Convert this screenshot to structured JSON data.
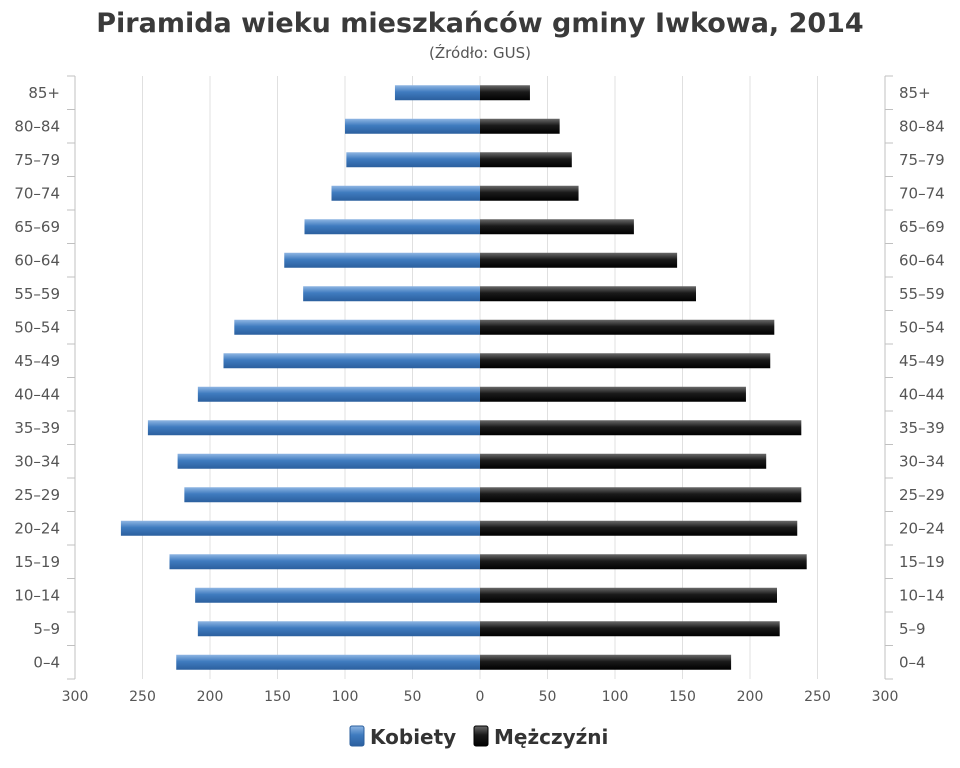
{
  "chart_data": {
    "type": "bar",
    "orientation": "horizontal",
    "title": "Piramida wieku mieszkańców gminy Iwkowa, 2014",
    "subtitle": "(Źródło: GUS)",
    "categories": [
      "85+",
      "80–84",
      "75–79",
      "70–74",
      "65–69",
      "60–64",
      "55–59",
      "50–54",
      "45–49",
      "40–44",
      "35–39",
      "30–34",
      "25–29",
      "20–24",
      "15–19",
      "10–14",
      "5–9",
      "0–4"
    ],
    "series": [
      {
        "name": "Kobiety",
        "color": "#3f7bbf",
        "side": "left",
        "values": [
          63,
          100,
          99,
          110,
          130,
          145,
          131,
          182,
          190,
          209,
          246,
          224,
          219,
          266,
          230,
          211,
          209,
          225
        ]
      },
      {
        "name": "Mężczyźni",
        "color": "#1a1a1a",
        "side": "right",
        "values": [
          37,
          59,
          68,
          73,
          114,
          146,
          160,
          218,
          215,
          197,
          238,
          212,
          238,
          235,
          242,
          220,
          222,
          186
        ]
      }
    ],
    "xlim": [
      -300,
      300
    ],
    "ticks": [
      300,
      250,
      200,
      150,
      100,
      50,
      0,
      50,
      100,
      150,
      200,
      250,
      300
    ],
    "grid": true,
    "legend": "bottom"
  }
}
